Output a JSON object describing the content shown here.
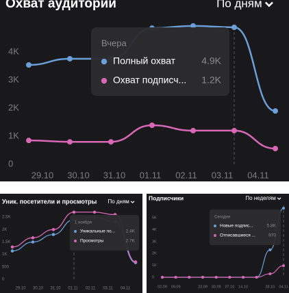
{
  "charts": [
    {
      "type": "line",
      "title": "Охват аудитории",
      "period": "По дням",
      "categories": [
        "29.10",
        "30.10",
        "31.10",
        "01.11",
        "02.11",
        "03.11",
        "04.11"
      ],
      "series": [
        {
          "name": "Полный охват",
          "color": "#6a9fd8",
          "values": [
            3540,
            3760,
            3760,
            4850,
            4930,
            4880,
            1900
          ]
        },
        {
          "name": "Охват подписч...",
          "color": "#d768b6",
          "values": [
            850,
            800,
            800,
            1390,
            1200,
            1200,
            560
          ]
        }
      ],
      "ylim": [
        0,
        5000
      ],
      "yticks": [
        0,
        {
          "value": 1000,
          "label": "1K"
        },
        {
          "value": 2000,
          "label": "2K"
        },
        {
          "value": 3000,
          "label": "3K"
        },
        {
          "value": 4000,
          "label": "4K"
        }
      ],
      "tooltip": {
        "title": "Вчера",
        "index": 5,
        "labels": [
          "4.9K",
          "1.2K"
        ]
      }
    },
    {
      "type": "line",
      "title": "Уник. посетители и просмотры",
      "period": "По дням",
      "categories": [
        "29.10",
        "30.10",
        "31.10",
        "01.11",
        "02.11",
        "03.11",
        "04.11"
      ],
      "series": [
        {
          "name": "Уникальные по...",
          "color": "#6a9fd8",
          "values": [
            1140,
            1500,
            1800,
            2400,
            2500,
            2300,
            670
          ]
        },
        {
          "name": "Просмотры",
          "color": "#d768b6",
          "values": [
            1300,
            1670,
            2000,
            2700,
            2700,
            2600,
            700
          ]
        }
      ],
      "ylim": [
        0,
        3000
      ],
      "yticks": [
        0,
        500,
        {
          "value": 1000,
          "label": "1K"
        },
        {
          "value": 1500,
          "label": "1.5K"
        },
        {
          "value": 2000,
          "label": "2K"
        },
        {
          "value": 2500,
          "label": "2.5K"
        }
      ],
      "tooltip": {
        "title": "1 ноября",
        "index": 3,
        "labels": [
          "2.4K",
          "2.7K"
        ]
      }
    },
    {
      "type": "line",
      "title": "Подписчики",
      "period": "По неделям",
      "categories": [
        "02.09",
        "09.09",
        null,
        "23.09",
        "30.09",
        "07.10",
        "14.10",
        null,
        "28.10",
        "04.11"
      ],
      "series": [
        {
          "name": "Новые подпис...",
          "color": "#6a9fd8",
          "values": [
            0,
            0,
            0,
            0,
            0,
            0,
            0,
            0,
            2300,
            5800
          ]
        },
        {
          "name": "Отписавшиеся ...",
          "color": "#d768b6",
          "values": [
            0,
            0,
            0,
            0,
            0,
            0,
            0,
            0,
            290,
            970
          ]
        }
      ],
      "ylim": [
        0,
        6000
      ],
      "yticks": [
        0,
        {
          "value": 1000,
          "label": "1K"
        },
        {
          "value": 2000,
          "label": "2K"
        },
        {
          "value": 3000,
          "label": "3K"
        },
        {
          "value": 4000,
          "label": "4K"
        },
        {
          "value": 5000,
          "label": "5K"
        }
      ],
      "tooltip": {
        "title": "Сегодня",
        "index": 9,
        "labels": [
          "5.8K",
          "970"
        ]
      }
    }
  ]
}
